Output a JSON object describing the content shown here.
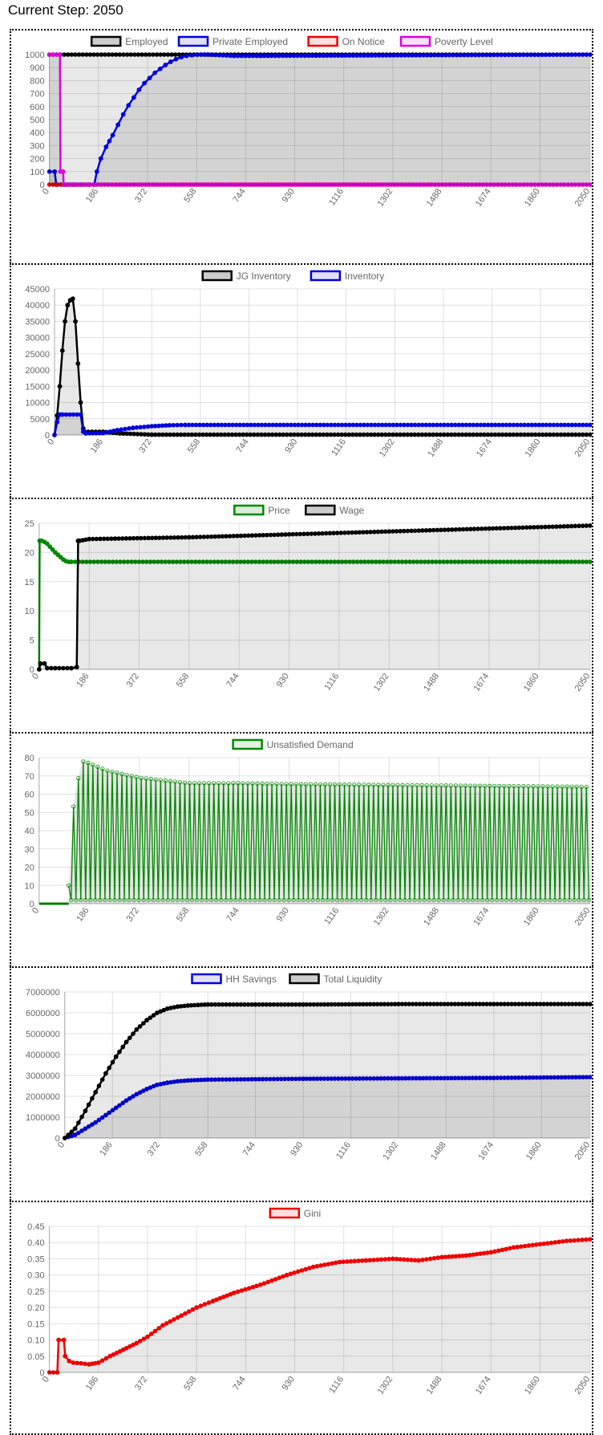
{
  "header": {
    "title": "Current Step: 2050"
  },
  "chart_data": [
    {
      "type": "line",
      "id": "employment",
      "xlim": [
        0,
        2050
      ],
      "xticks": [
        0,
        186,
        372,
        558,
        744,
        930,
        1116,
        1302,
        1488,
        1674,
        1860,
        2050
      ],
      "ylim": [
        0,
        1000
      ],
      "yticks": [
        0,
        100,
        200,
        300,
        400,
        500,
        600,
        700,
        800,
        900,
        1000
      ],
      "series": [
        {
          "name": "Employed",
          "color": "#000000",
          "fill": true,
          "x": [
            0,
            2050
          ],
          "y": [
            1000,
            1000
          ]
        },
        {
          "name": "Private Employed",
          "color": "#0000dd",
          "fill": true,
          "x": [
            0,
            20,
            26,
            30,
            60,
            90,
            120,
            150,
            170,
            180,
            195,
            215,
            240,
            260,
            280,
            300,
            320,
            340,
            360,
            380,
            400,
            420,
            440,
            460,
            480,
            500,
            520,
            540,
            560,
            600,
            700,
            800,
            2050
          ],
          "y": [
            100,
            100,
            0,
            0,
            0,
            0,
            0,
            0,
            0,
            100,
            200,
            290,
            380,
            460,
            540,
            610,
            670,
            730,
            780,
            820,
            860,
            890,
            920,
            945,
            965,
            980,
            990,
            995,
            1000,
            1000,
            990,
            990,
            1000
          ]
        },
        {
          "name": "On Notice",
          "color": "#ee0000",
          "fill": true,
          "x": [
            0,
            2050
          ],
          "y": [
            0,
            0
          ]
        },
        {
          "name": "Poverty Level",
          "color": "#dd00dd",
          "fill": true,
          "x": [
            0,
            40,
            42,
            52,
            54,
            2050
          ],
          "y": [
            1000,
            1000,
            100,
            100,
            0,
            0
          ]
        }
      ]
    },
    {
      "type": "line",
      "id": "inventory",
      "xlim": [
        0,
        2050
      ],
      "xticks": [
        0,
        186,
        372,
        558,
        744,
        930,
        1116,
        1302,
        1488,
        1674,
        1860,
        2050
      ],
      "ylim": [
        0,
        45000
      ],
      "yticks": [
        0,
        5000,
        10000,
        15000,
        20000,
        25000,
        30000,
        35000,
        40000,
        45000
      ],
      "series": [
        {
          "name": "JG Inventory",
          "color": "#000000",
          "fill": true,
          "x": [
            0,
            10,
            20,
            30,
            40,
            50,
            60,
            70,
            80,
            90,
            100,
            110,
            115,
            186,
            250,
            372,
            2050
          ],
          "y": [
            0,
            6000,
            15000,
            26000,
            35000,
            40000,
            41500,
            42000,
            35000,
            22000,
            10000,
            2000,
            1000,
            1000,
            500,
            100,
            100
          ]
        },
        {
          "name": "Inventory",
          "color": "#0000dd",
          "fill": true,
          "x": [
            0,
            10,
            20,
            30,
            100,
            110,
            120,
            186,
            240,
            300,
            372,
            440,
            500,
            2050
          ],
          "y": [
            0,
            4000,
            6300,
            6300,
            6300,
            1000,
            500,
            600,
            1500,
            2200,
            2700,
            3000,
            3100,
            3100
          ]
        }
      ]
    },
    {
      "type": "line",
      "id": "price-wage",
      "xlim": [
        0,
        2050
      ],
      "xticks": [
        0,
        186,
        372,
        558,
        744,
        930,
        1116,
        1302,
        1488,
        1674,
        1860,
        2050
      ],
      "ylim": [
        0,
        25
      ],
      "yticks": [
        0,
        5,
        10,
        15,
        20,
        25
      ],
      "series": [
        {
          "name": "Price",
          "color": "#008800",
          "fill": false,
          "x": [
            0,
            2,
            10,
            20,
            30,
            40,
            50,
            60,
            70,
            80,
            90,
            100,
            110,
            120,
            2050
          ],
          "y": [
            0,
            22,
            22,
            21.8,
            21.5,
            21,
            20.5,
            20,
            19.6,
            19.2,
            18.8,
            18.5,
            18.4,
            18.4,
            18.4
          ]
        },
        {
          "name": "Wage",
          "color": "#000000",
          "fill": true,
          "x": [
            0,
            5,
            20,
            30,
            60,
            120,
            140,
            145,
            150,
            186,
            558,
            930,
            1302,
            1674,
            2050
          ],
          "y": [
            0,
            1,
            1,
            0.2,
            0.2,
            0.2,
            0.4,
            22,
            22,
            22.3,
            22.6,
            23.1,
            23.6,
            24.1,
            24.6
          ]
        }
      ]
    },
    {
      "type": "line",
      "id": "unsatisfied-demand",
      "xlim": [
        0,
        2050
      ],
      "xticks": [
        0,
        186,
        372,
        558,
        744,
        930,
        1116,
        1302,
        1488,
        1674,
        1860,
        2050
      ],
      "ylim": [
        0,
        80
      ],
      "yticks": [
        0,
        10,
        20,
        30,
        40,
        50,
        60,
        70,
        80
      ],
      "series": [
        {
          "name": "Unsatisfied Demand",
          "color": "#008800",
          "fill": true,
          "oscillating": true,
          "start": 110,
          "low": 2,
          "peak_x": [
            110,
            130,
            160,
            186,
            250,
            372,
            558,
            744,
            930,
            1302,
            1674,
            2050
          ],
          "peak_y": [
            10,
            58,
            78,
            77,
            73,
            69,
            66,
            66,
            65.5,
            65,
            64.5,
            64
          ]
        }
      ]
    },
    {
      "type": "line",
      "id": "liquidity",
      "xlim": [
        0,
        2050
      ],
      "xticks": [
        0,
        186,
        372,
        558,
        744,
        930,
        1116,
        1302,
        1488,
        1674,
        1860,
        2050
      ],
      "ylim": [
        0,
        7000000
      ],
      "yticks": [
        0,
        1000000,
        2000000,
        3000000,
        4000000,
        5000000,
        6000000,
        7000000
      ],
      "series": [
        {
          "name": "HH Savings",
          "color": "#0000dd",
          "fill": true,
          "x": [
            0,
            40,
            80,
            120,
            160,
            200,
            240,
            280,
            320,
            360,
            400,
            440,
            480,
            558,
            744,
            930,
            1302,
            1674,
            2050
          ],
          "y": [
            0,
            150000,
            450000,
            750000,
            1100000,
            1450000,
            1800000,
            2100000,
            2350000,
            2550000,
            2650000,
            2720000,
            2760000,
            2800000,
            2820000,
            2840000,
            2860000,
            2880000,
            2920000
          ]
        },
        {
          "name": "Total Liquidity",
          "color": "#000000",
          "fill": true,
          "x": [
            0,
            40,
            80,
            120,
            160,
            200,
            240,
            280,
            320,
            360,
            400,
            440,
            480,
            520,
            558,
            744,
            930,
            1302,
            1674,
            2050
          ],
          "y": [
            0,
            450000,
            1300000,
            2200000,
            3100000,
            3900000,
            4600000,
            5200000,
            5650000,
            6000000,
            6200000,
            6300000,
            6350000,
            6380000,
            6400000,
            6400000,
            6400000,
            6420000,
            6420000,
            6420000
          ]
        }
      ]
    },
    {
      "type": "line",
      "id": "gini",
      "xlim": [
        0,
        2050
      ],
      "xticks": [
        0,
        186,
        372,
        558,
        744,
        930,
        1116,
        1302,
        1488,
        1674,
        1860,
        2050
      ],
      "ylim": [
        0,
        0.45
      ],
      "yticks": [
        0,
        0.05,
        0.1,
        0.15,
        0.2,
        0.25,
        0.3,
        0.35,
        0.4,
        0.45
      ],
      "ytick_labels": [
        "0",
        "0.05",
        "0.10",
        "0.15",
        "0.20",
        "0.25",
        "0.30",
        "0.35",
        "0.40",
        "0.45"
      ],
      "series": [
        {
          "name": "Gini",
          "color": "#ee0000",
          "fill": true,
          "x": [
            0,
            30,
            35,
            55,
            60,
            75,
            90,
            120,
            150,
            186,
            230,
            280,
            330,
            372,
            430,
            500,
            558,
            620,
            700,
            800,
            900,
            1000,
            1100,
            1200,
            1302,
            1400,
            1488,
            1580,
            1674,
            1760,
            1860,
            1960,
            2050
          ],
          "y": [
            0,
            0,
            0.1,
            0.1,
            0.05,
            0.035,
            0.03,
            0.028,
            0.025,
            0.03,
            0.05,
            0.07,
            0.09,
            0.11,
            0.145,
            0.175,
            0.2,
            0.22,
            0.245,
            0.27,
            0.3,
            0.325,
            0.34,
            0.345,
            0.35,
            0.345,
            0.355,
            0.36,
            0.37,
            0.385,
            0.395,
            0.405,
            0.41
          ]
        }
      ]
    }
  ]
}
